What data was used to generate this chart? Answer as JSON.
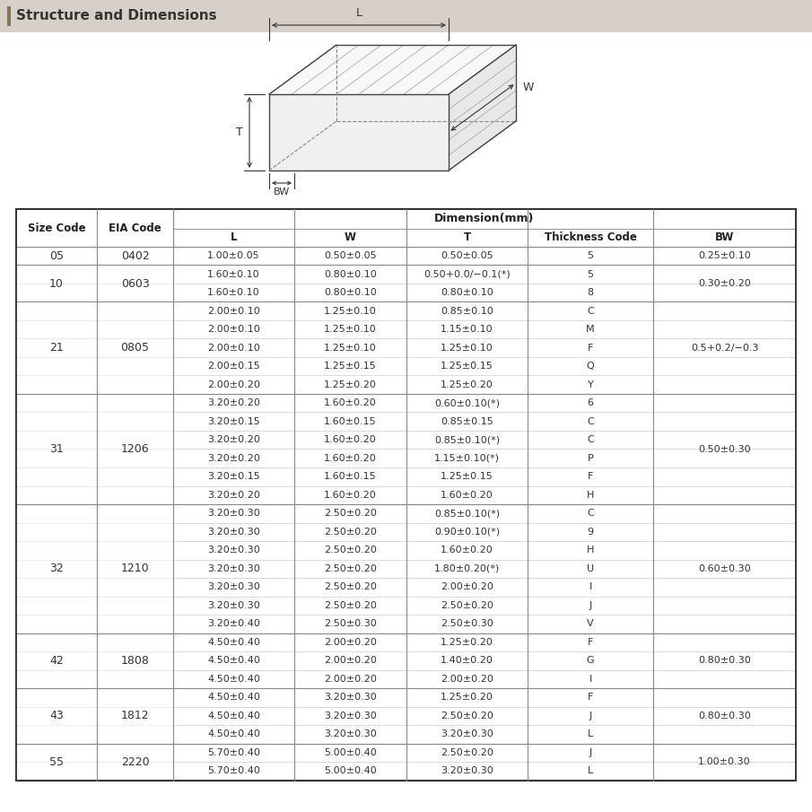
{
  "title": "Structure and Dimensions",
  "title_bar_color": "#d6d0c8",
  "title_accent_color": "#8B7355",
  "dim_header": "Dimension(mm)",
  "rows": [
    {
      "size": "05",
      "eia": "0402",
      "data": [
        [
          "1.00±0.05",
          "0.50±0.05",
          "0.50±0.05",
          "5",
          "0.25±0.10"
        ]
      ]
    },
    {
      "size": "10",
      "eia": "0603",
      "data": [
        [
          "1.60±0.10",
          "0.80±0.10",
          "0.50+0.0/−0.1(*)",
          "5",
          "0.30±0.20"
        ],
        [
          "1.60±0.10",
          "0.80±0.10",
          "0.80±0.10",
          "8",
          ""
        ]
      ]
    },
    {
      "size": "21",
      "eia": "0805",
      "data": [
        [
          "2.00±0.10",
          "1.25±0.10",
          "0.85±0.10",
          "C",
          "0.5+0.2/−0.3"
        ],
        [
          "2.00±0.10",
          "1.25±0.10",
          "1.15±0.10",
          "M",
          ""
        ],
        [
          "2.00±0.10",
          "1.25±0.10",
          "1.25±0.10",
          "F",
          ""
        ],
        [
          "2.00±0.15",
          "1.25±0.15",
          "1.25±0.15",
          "Q",
          ""
        ],
        [
          "2.00±0.20",
          "1.25±0.20",
          "1.25±0.20",
          "Y",
          ""
        ]
      ]
    },
    {
      "size": "31",
      "eia": "1206",
      "data": [
        [
          "3.20±0.20",
          "1.60±0.20",
          "0.60±0.10(*)",
          "6",
          "0.50±0.30"
        ],
        [
          "3.20±0.15",
          "1.60±0.15",
          "0.85±0.15",
          "C",
          ""
        ],
        [
          "3.20±0.20",
          "1.60±0.20",
          "0.85±0.10(*)",
          "C",
          ""
        ],
        [
          "3.20±0.20",
          "1.60±0.20",
          "1.15±0.10(*)",
          "P",
          ""
        ],
        [
          "3.20±0.15",
          "1.60±0.15",
          "1.25±0.15",
          "F",
          ""
        ],
        [
          "3.20±0.20",
          "1.60±0.20",
          "1.60±0.20",
          "H",
          ""
        ]
      ]
    },
    {
      "size": "32",
      "eia": "1210",
      "data": [
        [
          "3.20±0.30",
          "2.50±0.20",
          "0.85±0.10(*)",
          "C",
          "0.60±0.30"
        ],
        [
          "3.20±0.30",
          "2.50±0.20",
          "0.90±0.10(*)",
          "9",
          ""
        ],
        [
          "3.20±0.30",
          "2.50±0.20",
          "1.60±0.20",
          "H",
          ""
        ],
        [
          "3.20±0.30",
          "2.50±0.20",
          "1.80±0.20(*)",
          "U",
          ""
        ],
        [
          "3.20±0.30",
          "2.50±0.20",
          "2.00±0.20",
          "I",
          ""
        ],
        [
          "3.20±0.30",
          "2.50±0.20",
          "2.50±0.20",
          "J",
          ""
        ],
        [
          "3.20±0.40",
          "2.50±0.30",
          "2.50±0.30",
          "V",
          ""
        ]
      ]
    },
    {
      "size": "42",
      "eia": "1808",
      "data": [
        [
          "4.50±0.40",
          "2.00±0.20",
          "1.25±0.20",
          "F",
          "0.80±0.30"
        ],
        [
          "4.50±0.40",
          "2.00±0.20",
          "1.40±0.20",
          "G",
          ""
        ],
        [
          "4.50±0.40",
          "2.00±0.20",
          "2.00±0.20",
          "I",
          ""
        ]
      ]
    },
    {
      "size": "43",
      "eia": "1812",
      "data": [
        [
          "4.50±0.40",
          "3.20±0.30",
          "1.25±0.20",
          "F",
          "0.80±0.30"
        ],
        [
          "4.50±0.40",
          "3.20±0.30",
          "2.50±0.20",
          "J",
          ""
        ],
        [
          "4.50±0.40",
          "3.20±0.30",
          "3.20±0.30",
          "L",
          ""
        ]
      ]
    },
    {
      "size": "55",
      "eia": "2220",
      "data": [
        [
          "5.70±0.40",
          "5.00±0.40",
          "2.50±0.20",
          "J",
          "1.00±0.30"
        ],
        [
          "5.70±0.40",
          "5.00±0.40",
          "3.20±0.30",
          "L",
          ""
        ]
      ]
    }
  ]
}
